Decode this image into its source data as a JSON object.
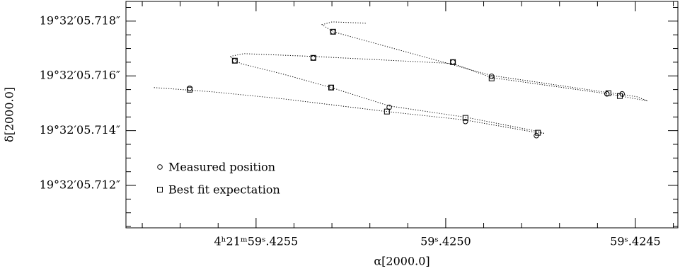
{
  "chart_data": {
    "type": "scatter",
    "xlabel": "α[2000.0]",
    "ylabel": "δ[2000.0]",
    "xlim": [
      59.425843,
      59.424388
    ],
    "ylim": [
      5.71045,
      5.71872
    ],
    "xticks": [
      {
        "value": 59.4255,
        "label": "4ʰ21ᵐ59ˢ.4255"
      },
      {
        "value": 59.425,
        "label": "59ˢ.4250"
      },
      {
        "value": 59.4245,
        "label": "59ˢ.4245"
      }
    ],
    "x_minor_ticks": [
      59.4258,
      59.4257,
      59.4256,
      59.4254,
      59.4253,
      59.4252,
      59.4251,
      59.4249,
      59.4248,
      59.4247,
      59.4246,
      59.4244
    ],
    "yticks": [
      {
        "value": 5.718,
        "label": "19°32′05.718″"
      },
      {
        "value": 5.716,
        "label": "19°32′05.716″"
      },
      {
        "value": 5.714,
        "label": "19°32′05.714″"
      },
      {
        "value": 5.712,
        "label": "19°32′05.712″"
      }
    ],
    "y_minor_ticks": [
      5.7185,
      5.7175,
      5.717,
      5.7165,
      5.7155,
      5.715,
      5.7145,
      5.7135,
      5.713,
      5.7125,
      5.7115,
      5.711,
      5.7105
    ],
    "legend": "lower left",
    "color": "#000000",
    "series": [
      {
        "name": "Measured position",
        "marker": "circle",
        "x": [
          59.425675,
          59.425556,
          59.425349,
          59.425297,
          59.425302,
          59.425149,
          59.424981,
          59.424879,
          59.424948,
          59.424761,
          59.424575,
          59.424535
        ],
        "values": [
          5.715548,
          5.716555,
          5.716658,
          5.717613,
          5.715574,
          5.714852,
          5.716503,
          5.715987,
          5.714335,
          5.713819,
          5.715342,
          5.715342
        ]
      },
      {
        "name": "Best fit expectation",
        "marker": "square",
        "x": [
          59.425675,
          59.425556,
          59.425349,
          59.425297,
          59.425302,
          59.425155,
          59.424981,
          59.424879,
          59.424948,
          59.424757,
          59.424571,
          59.424541
        ],
        "values": [
          5.715497,
          5.716555,
          5.716658,
          5.717613,
          5.715574,
          5.714697,
          5.716503,
          5.71591,
          5.714465,
          5.713923,
          5.715368,
          5.715265
        ]
      },
      {
        "marker": "dotted-line",
        "x": [
          59.425769,
          59.425616,
          59.425429,
          59.425155,
          59.424948,
          59.424757,
          59.424739,
          59.424757,
          59.424948,
          59.425149,
          59.425302,
          59.425429,
          59.425541,
          59.425569,
          59.425532,
          59.425349,
          59.424981,
          59.424879,
          59.424571,
          59.424468,
          59.424496,
          59.424879,
          59.425297,
          59.425326,
          59.425299,
          59.425211
        ],
        "values": [
          5.715574,
          5.715419,
          5.715161,
          5.714697,
          5.714387,
          5.713923,
          5.713897,
          5.713974,
          5.71449,
          5.714903,
          5.715574,
          5.716065,
          5.716452,
          5.71671,
          5.716813,
          5.71671,
          5.716452,
          5.715935,
          5.715342,
          5.715084,
          5.715239,
          5.716013,
          5.717613,
          5.717871,
          5.717974,
          5.717923
        ]
      }
    ]
  }
}
